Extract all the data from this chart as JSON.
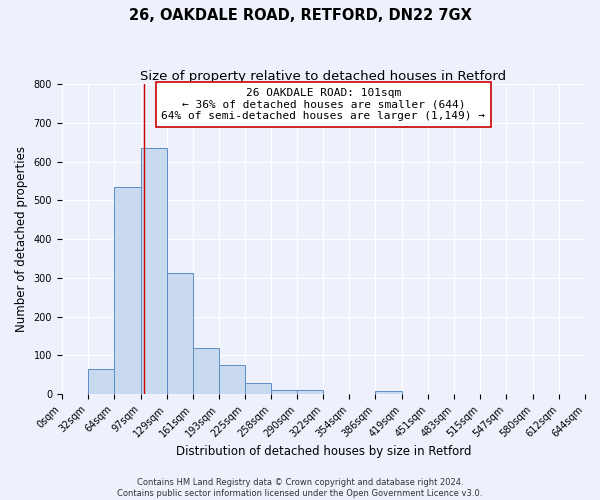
{
  "title_line1": "26, OAKDALE ROAD, RETFORD, DN22 7GX",
  "title_line2": "Size of property relative to detached houses in Retford",
  "xlabel": "Distribution of detached houses by size in Retford",
  "ylabel": "Number of detached properties",
  "bin_edges": [
    0,
    32,
    64,
    97,
    129,
    161,
    193,
    225,
    258,
    290,
    322,
    354,
    386,
    419,
    451,
    483,
    515,
    547,
    580,
    612,
    644
  ],
  "counts": [
    0,
    65,
    535,
    635,
    312,
    120,
    75,
    30,
    12,
    10,
    0,
    0,
    8,
    0,
    0,
    0,
    0,
    0,
    0,
    0
  ],
  "bar_color": "#c9d9ef",
  "bar_edge_color": "#5b8ec4",
  "property_size": 101,
  "vline_color": "#cc0000",
  "annotation_line1": "26 OAKDALE ROAD: 101sqm",
  "annotation_line2": "← 36% of detached houses are smaller (644)",
  "annotation_line3": "64% of semi-detached houses are larger (1,149) →",
  "annotation_box_color": "#ffffff",
  "annotation_box_edge_color": "#cc0000",
  "ylim": [
    0,
    800
  ],
  "yticks": [
    0,
    100,
    200,
    300,
    400,
    500,
    600,
    700,
    800
  ],
  "tick_labels": [
    "0sqm",
    "32sqm",
    "64sqm",
    "97sqm",
    "129sqm",
    "161sqm",
    "193sqm",
    "225sqm",
    "258sqm",
    "290sqm",
    "322sqm",
    "354sqm",
    "386sqm",
    "419sqm",
    "451sqm",
    "483sqm",
    "515sqm",
    "547sqm",
    "580sqm",
    "612sqm",
    "644sqm"
  ],
  "footer_line1": "Contains HM Land Registry data © Crown copyright and database right 2024.",
  "footer_line2": "Contains public sector information licensed under the Open Government Licence v3.0.",
  "fig_background_color": "#eef1fb",
  "axes_background_color": "#eef1fb",
  "grid_color": "#ffffff",
  "title1_fontsize": 10.5,
  "title2_fontsize": 9.5,
  "axis_label_fontsize": 8.5,
  "tick_fontsize": 7,
  "footer_fontsize": 6,
  "annotation_fontsize": 8
}
